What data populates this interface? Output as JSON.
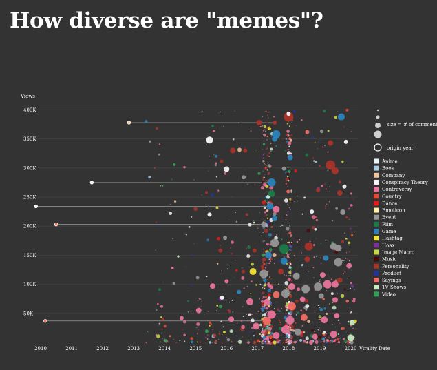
{
  "title": "How diverse are \"memes\"?",
  "chart_data": {
    "type": "scatter",
    "title": "How diverse are \"memes\"?",
    "ylabel": "Views",
    "xlabel": "Virality Date",
    "x_ticks": [
      "2010",
      "2011",
      "2012",
      "2013",
      "2014",
      "2015",
      "2016",
      "2017",
      "2018",
      "2019",
      "2020"
    ],
    "y_ticks": [
      "50K",
      "100K",
      "150K",
      "200K",
      "250K",
      "300K",
      "350K",
      "400K"
    ],
    "y_tick_values": [
      50000,
      100000,
      150000,
      200000,
      250000,
      300000,
      350000,
      400000
    ],
    "xlim": [
      2009.8,
      2020.8
    ],
    "ylim": [
      0,
      410000
    ],
    "grid": true,
    "legend_position": "right",
    "size_legend": "size = # of comments",
    "origin_legend": "origin year",
    "categories": [
      {
        "name": "Anime",
        "color": "#e8f4f8"
      },
      {
        "name": "Book",
        "color": "#a6cee3"
      },
      {
        "name": "Company",
        "color": "#f4c49a"
      },
      {
        "name": "Conspiracy Theory",
        "color": "#f5f5f5"
      },
      {
        "name": "Controversy",
        "color": "#e8739b"
      },
      {
        "name": "Country",
        "color": "#e34a33"
      },
      {
        "name": "Dance",
        "color": "#e41a1c"
      },
      {
        "name": "Emoticon",
        "color": "#fff2a8"
      },
      {
        "name": "Event",
        "color": "#969696"
      },
      {
        "name": "Film",
        "color": "#1b7a47"
      },
      {
        "name": "Game",
        "color": "#2b83ba"
      },
      {
        "name": "Hashtag",
        "color": "#f2e33a"
      },
      {
        "name": "Hoax",
        "color": "#7b3294"
      },
      {
        "name": "Image Macro",
        "color": "#c8d84a"
      },
      {
        "name": "Music",
        "color": "#4a0a0a"
      },
      {
        "name": "Personality",
        "color": "#a8342b"
      },
      {
        "name": "Product",
        "color": "#253494"
      },
      {
        "name": "Sayings",
        "color": "#f46d63"
      },
      {
        "name": "TV Shows",
        "color": "#c7e9c0"
      },
      {
        "name": "Video",
        "color": "#31a354"
      }
    ],
    "origin_links": [
      {
        "origin": 2010.15,
        "viral": 2017.3,
        "views": 37000,
        "category": "Sayings"
      },
      {
        "origin": 2010.5,
        "viral": 2017.2,
        "views": 203000,
        "category": "Sayings"
      },
      {
        "origin": 2009.85,
        "viral": 2017.4,
        "views": 234000,
        "category": "Conspiracy Theory"
      },
      {
        "origin": 2011.65,
        "viral": 2017.45,
        "views": 275000,
        "category": "Anime"
      },
      {
        "origin": 2012.85,
        "viral": 2017.55,
        "views": 378000,
        "category": "Company"
      }
    ],
    "points": [
      {
        "x": 2017.3,
        "y": 37000,
        "s": 6,
        "c": "Sayings"
      },
      {
        "x": 2017.2,
        "y": 203000,
        "s": 4,
        "c": "Event"
      },
      {
        "x": 2017.4,
        "y": 234000,
        "s": 5,
        "c": "Game"
      },
      {
        "x": 2017.45,
        "y": 275000,
        "s": 6,
        "c": "Game"
      },
      {
        "x": 2017.55,
        "y": 378000,
        "s": 3,
        "c": "Personality"
      },
      {
        "x": 2017.05,
        "y": 378000,
        "s": 4,
        "c": "Personality"
      },
      {
        "x": 2018.0,
        "y": 388000,
        "s": 7,
        "c": "Personality"
      },
      {
        "x": 2019.7,
        "y": 388000,
        "s": 5,
        "c": "Game"
      },
      {
        "x": 2018.0,
        "y": 393000,
        "s": 3,
        "c": "Conspiracy Theory"
      },
      {
        "x": 2017.6,
        "y": 358000,
        "s": 6,
        "c": "Game"
      },
      {
        "x": 2017.55,
        "y": 350000,
        "s": 4,
        "c": "Game"
      },
      {
        "x": 2015.45,
        "y": 348000,
        "s": 5,
        "c": "Conspiracy Theory"
      },
      {
        "x": 2018.6,
        "y": 362000,
        "s": 3,
        "c": "Sayings"
      },
      {
        "x": 2019.35,
        "y": 343000,
        "s": 4,
        "c": "Personality"
      },
      {
        "x": 2019.85,
        "y": 345000,
        "s": 3,
        "c": "Conspiracy Theory"
      },
      {
        "x": 2016.2,
        "y": 330000,
        "s": 4,
        "c": "Personality"
      },
      {
        "x": 2016.6,
        "y": 330000,
        "s": 3,
        "c": "Personality"
      },
      {
        "x": 2018.05,
        "y": 318000,
        "s": 4,
        "c": "Game"
      },
      {
        "x": 2017.85,
        "y": 299000,
        "s": 3,
        "c": "Event"
      },
      {
        "x": 2016.0,
        "y": 298000,
        "s": 4,
        "c": "Conspiracy Theory"
      },
      {
        "x": 2019.35,
        "y": 305000,
        "s": 7,
        "c": "Personality"
      },
      {
        "x": 2019.5,
        "y": 295000,
        "s": 5,
        "c": "Personality"
      },
      {
        "x": 2016.55,
        "y": 284000,
        "s": 3,
        "c": "Event"
      },
      {
        "x": 2019.8,
        "y": 268000,
        "s": 3,
        "c": "Conspiracy Theory"
      },
      {
        "x": 2019.65,
        "y": 257000,
        "s": 4,
        "c": "Personality"
      },
      {
        "x": 2018.95,
        "y": 262000,
        "s": 3,
        "c": "Personality"
      },
      {
        "x": 2017.45,
        "y": 256000,
        "s": 5,
        "c": "Film"
      },
      {
        "x": 2017.6,
        "y": 229000,
        "s": 5,
        "c": "Controversy"
      },
      {
        "x": 2017.55,
        "y": 213000,
        "s": 4,
        "c": "Game"
      },
      {
        "x": 2018.75,
        "y": 225000,
        "s": 3,
        "c": "Conspiracy Theory"
      },
      {
        "x": 2019.75,
        "y": 224000,
        "s": 4,
        "c": "Event"
      },
      {
        "x": 2015.45,
        "y": 220000,
        "s": 3,
        "c": "Conspiracy Theory"
      },
      {
        "x": 2017.55,
        "y": 171000,
        "s": 6,
        "c": "Event"
      },
      {
        "x": 2017.85,
        "y": 161000,
        "s": 7,
        "c": "Film"
      },
      {
        "x": 2018.65,
        "y": 165000,
        "s": 6,
        "c": "Personality"
      },
      {
        "x": 2019.45,
        "y": 165000,
        "s": 5,
        "c": "Event"
      },
      {
        "x": 2019.6,
        "y": 162000,
        "s": 5,
        "c": "Event"
      },
      {
        "x": 2019.6,
        "y": 138000,
        "s": 6,
        "c": "Event"
      },
      {
        "x": 2019.2,
        "y": 145000,
        "s": 4,
        "c": "Game"
      },
      {
        "x": 2018.6,
        "y": 143000,
        "s": 4,
        "c": "Personality"
      },
      {
        "x": 2017.85,
        "y": 140000,
        "s": 5,
        "c": "Game"
      },
      {
        "x": 2017.35,
        "y": 150000,
        "s": 5,
        "c": "Game"
      },
      {
        "x": 2016.9,
        "y": 158000,
        "s": 3,
        "c": "Personality"
      },
      {
        "x": 2015.8,
        "y": 158000,
        "s": 3,
        "c": "Personality"
      },
      {
        "x": 2016.85,
        "y": 122000,
        "s": 5,
        "c": "Hashtag"
      },
      {
        "x": 2017.2,
        "y": 118000,
        "s": 6,
        "c": "Event"
      },
      {
        "x": 2017.75,
        "y": 122000,
        "s": 4,
        "c": "Personality"
      },
      {
        "x": 2018.25,
        "y": 114000,
        "s": 5,
        "c": "Event"
      },
      {
        "x": 2019.1,
        "y": 116000,
        "s": 4,
        "c": "Controversy"
      },
      {
        "x": 2018.1,
        "y": 96000,
        "s": 5,
        "c": "Controversy"
      },
      {
        "x": 2018.55,
        "y": 92000,
        "s": 6,
        "c": "Event"
      },
      {
        "x": 2018.95,
        "y": 96000,
        "s": 6,
        "c": "Event"
      },
      {
        "x": 2019.25,
        "y": 100000,
        "s": 6,
        "c": "Controversy"
      },
      {
        "x": 2019.5,
        "y": 100000,
        "s": 5,
        "c": "Controversy"
      },
      {
        "x": 2019.65,
        "y": 107000,
        "s": 4,
        "c": "Personality"
      },
      {
        "x": 2019.95,
        "y": 132000,
        "s": 4,
        "c": "Controversy"
      },
      {
        "x": 2017.9,
        "y": 84000,
        "s": 6,
        "c": "Event"
      },
      {
        "x": 2017.6,
        "y": 82000,
        "s": 5,
        "c": "Sayings"
      },
      {
        "x": 2016.4,
        "y": 87000,
        "s": 3,
        "c": "Game"
      },
      {
        "x": 2016.0,
        "y": 105000,
        "s": 3,
        "c": "Controversy"
      },
      {
        "x": 2015.55,
        "y": 97000,
        "s": 4,
        "c": "Controversy"
      },
      {
        "x": 2015.85,
        "y": 77000,
        "s": 3,
        "c": "Conspiracy Theory"
      },
      {
        "x": 2016.75,
        "y": 70000,
        "s": 5,
        "c": "Controversy"
      },
      {
        "x": 2017.3,
        "y": 69000,
        "s": 5,
        "c": "Controversy"
      },
      {
        "x": 2018.1,
        "y": 62000,
        "s": 6,
        "c": "Sayings"
      },
      {
        "x": 2018.45,
        "y": 74000,
        "s": 4,
        "c": "Controversy"
      },
      {
        "x": 2019.5,
        "y": 73000,
        "s": 4,
        "c": "Controversy"
      },
      {
        "x": 2019.05,
        "y": 80000,
        "s": 4,
        "c": "Event"
      },
      {
        "x": 2017.45,
        "y": 48000,
        "s": 6,
        "c": "Controversy"
      },
      {
        "x": 2018.05,
        "y": 38000,
        "s": 6,
        "c": "Controversy"
      },
      {
        "x": 2018.5,
        "y": 43000,
        "s": 5,
        "c": "Sayings"
      },
      {
        "x": 2019.15,
        "y": 39000,
        "s": 5,
        "c": "Controversy"
      },
      {
        "x": 2019.55,
        "y": 46000,
        "s": 4,
        "c": "Controversy"
      },
      {
        "x": 2020.05,
        "y": 34000,
        "s": 4,
        "c": "TV Shows"
      },
      {
        "x": 2016.15,
        "y": 40000,
        "s": 4,
        "c": "Controversy"
      },
      {
        "x": 2015.1,
        "y": 55000,
        "s": 4,
        "c": "Controversy"
      },
      {
        "x": 2016.95,
        "y": 28000,
        "s": 5,
        "c": "Controversy"
      },
      {
        "x": 2017.9,
        "y": 22000,
        "s": 6,
        "c": "Controversy"
      },
      {
        "x": 2018.3,
        "y": 18000,
        "s": 5,
        "c": "Event"
      },
      {
        "x": 2019.45,
        "y": 14000,
        "s": 5,
        "c": "Controversy"
      },
      {
        "x": 2020.0,
        "y": 8000,
        "s": 5,
        "c": "TV Shows"
      },
      {
        "x": 2017.6,
        "y": 12000,
        "s": 5,
        "c": "Controversy"
      },
      {
        "x": 2018.85,
        "y": 10000,
        "s": 4,
        "c": "Controversy"
      },
      {
        "x": 2014.55,
        "y": 42000,
        "s": 3,
        "c": "Controversy"
      },
      {
        "x": 2013.95,
        "y": 40000,
        "s": 2,
        "c": "Personality"
      },
      {
        "x": 2014.25,
        "y": 128000,
        "s": 2,
        "c": "Controversy"
      },
      {
        "x": 2015.95,
        "y": 180000,
        "s": 3,
        "c": "Event"
      },
      {
        "x": 2016.65,
        "y": 220000,
        "s": 2,
        "c": "Personality"
      },
      {
        "x": 2015.35,
        "y": 258000,
        "s": 2,
        "c": "Personality"
      },
      {
        "x": 2015.55,
        "y": 372000,
        "s": 2,
        "c": "Film"
      },
      {
        "x": 2019.15,
        "y": 398000,
        "s": 2,
        "c": "Film"
      }
    ]
  }
}
